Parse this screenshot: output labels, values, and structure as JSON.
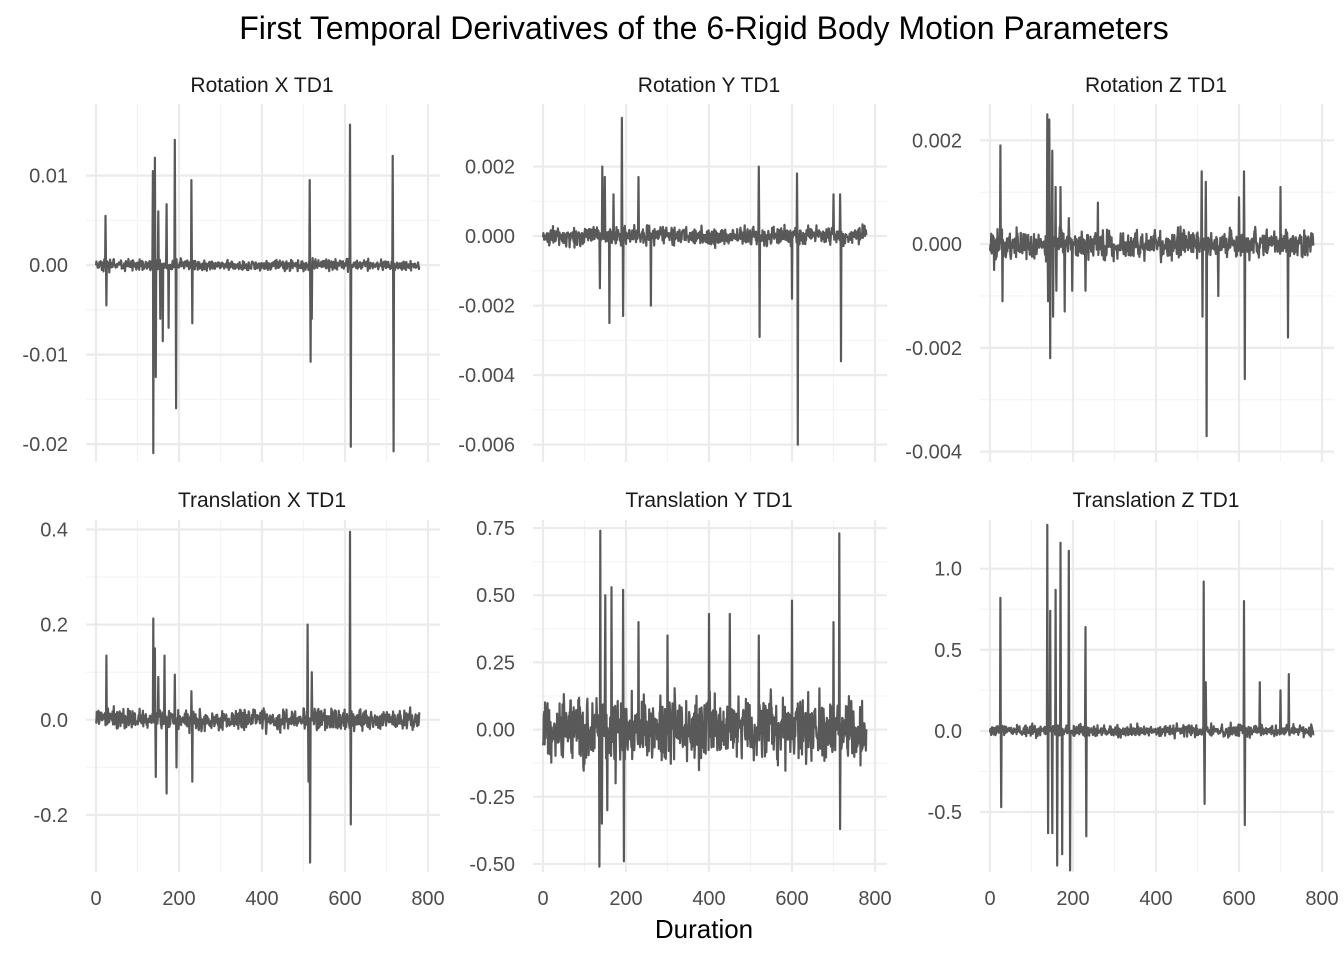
{
  "title": "First Temporal Derivatives of the 6-Rigid Body Motion Parameters",
  "xlabel": "Duration",
  "line_color": "#595959",
  "chart_data": [
    {
      "type": "line",
      "title": "Rotation X TD1",
      "xlim": [
        0,
        800
      ],
      "x_ticks": [
        0,
        200,
        400,
        600,
        800
      ],
      "x_tick_labels": [
        "0",
        "200",
        "400",
        "600",
        "800"
      ],
      "ylim": [
        -0.022,
        0.018
      ],
      "y_ticks": [
        -0.02,
        -0.01,
        0.0,
        0.01
      ],
      "y_tick_labels": [
        "-0.02",
        "-0.01",
        "0.00",
        "0.01"
      ],
      "noise": 0.0005,
      "n": 780,
      "spikes": [
        [
          23,
          0.0055
        ],
        [
          25,
          -0.0045
        ],
        [
          137,
          0.0105
        ],
        [
          138,
          -0.021
        ],
        [
          142,
          0.012
        ],
        [
          144,
          -0.0125
        ],
        [
          150,
          0.006
        ],
        [
          155,
          -0.006
        ],
        [
          161,
          -0.0085
        ],
        [
          170,
          0.0068
        ],
        [
          175,
          -0.007
        ],
        [
          190,
          0.014
        ],
        [
          193,
          -0.016
        ],
        [
          230,
          0.0095
        ],
        [
          232,
          -0.0065
        ],
        [
          515,
          0.0095
        ],
        [
          517,
          -0.0108
        ],
        [
          520,
          -0.006
        ],
        [
          612,
          0.0157
        ],
        [
          614,
          -0.0203
        ],
        [
          715,
          0.0122
        ],
        [
          717,
          -0.0208
        ]
      ]
    },
    {
      "type": "line",
      "title": "Rotation Y TD1",
      "xlim": [
        0,
        800
      ],
      "x_ticks": [
        0,
        200,
        400,
        600,
        800
      ],
      "x_tick_labels": [
        "0",
        "200",
        "400",
        "600",
        "800"
      ],
      "ylim": [
        -0.0065,
        0.0038
      ],
      "y_ticks": [
        -0.006,
        -0.004,
        -0.002,
        0.0,
        0.002
      ],
      "y_tick_labels": [
        "-0.006",
        "-0.004",
        "-0.002",
        "0.000",
        "0.002"
      ],
      "noise": 0.00022,
      "n": 780,
      "spikes": [
        [
          137,
          -0.0015
        ],
        [
          143,
          0.002
        ],
        [
          149,
          0.0017
        ],
        [
          160,
          -0.0025
        ],
        [
          170,
          0.0012
        ],
        [
          190,
          0.0034
        ],
        [
          193,
          -0.0023
        ],
        [
          230,
          0.0017
        ],
        [
          260,
          -0.002
        ],
        [
          520,
          0.002
        ],
        [
          522,
          -0.0029
        ],
        [
          600,
          -0.0018
        ],
        [
          612,
          0.0018
        ],
        [
          614,
          -0.006
        ],
        [
          700,
          0.0012
        ],
        [
          716,
          0.0012
        ],
        [
          718,
          -0.0036
        ]
      ]
    },
    {
      "type": "line",
      "title": "Rotation Z TD1",
      "xlim": [
        0,
        800
      ],
      "x_ticks": [
        0,
        200,
        400,
        600,
        800
      ],
      "x_tick_labels": [
        "0",
        "200",
        "400",
        "600",
        "800"
      ],
      "ylim": [
        -0.0042,
        0.0027
      ],
      "y_ticks": [
        -0.004,
        -0.002,
        0.0,
        0.002
      ],
      "y_tick_labels": [
        "-0.004",
        "-0.002",
        "0.000",
        "0.002"
      ],
      "noise": 0.00022,
      "n": 780,
      "spikes": [
        [
          10,
          -0.0005
        ],
        [
          25,
          0.0019
        ],
        [
          30,
          -0.0011
        ],
        [
          138,
          0.0025
        ],
        [
          140,
          -0.0011
        ],
        [
          143,
          0.0024
        ],
        [
          145,
          -0.0022
        ],
        [
          150,
          0.0018
        ],
        [
          152,
          -0.0014
        ],
        [
          158,
          0.0011
        ],
        [
          160,
          -0.0009
        ],
        [
          170,
          0.0011
        ],
        [
          180,
          -0.0013
        ],
        [
          190,
          0.0005
        ],
        [
          198,
          -0.0009
        ],
        [
          230,
          -0.0009
        ],
        [
          260,
          0.0008
        ],
        [
          510,
          0.0014
        ],
        [
          512,
          -0.0014
        ],
        [
          520,
          0.0012
        ],
        [
          522,
          -0.0037
        ],
        [
          550,
          -0.001
        ],
        [
          600,
          0.0009
        ],
        [
          612,
          0.0014
        ],
        [
          614,
          -0.0026
        ],
        [
          700,
          0.0011
        ],
        [
          718,
          -0.0018
        ]
      ]
    },
    {
      "type": "line",
      "title": "Translation X TD1",
      "xlim": [
        0,
        800
      ],
      "x_ticks": [
        0,
        200,
        400,
        600,
        800
      ],
      "x_tick_labels": [
        "0",
        "200",
        "400",
        "600",
        "800"
      ],
      "ylim": [
        -0.32,
        0.42
      ],
      "y_ticks": [
        -0.2,
        0.0,
        0.2,
        0.4
      ],
      "y_tick_labels": [
        "-0.2",
        "0.0",
        "0.2",
        "0.4"
      ],
      "noise": 0.018,
      "n": 780,
      "spikes": [
        [
          25,
          0.135
        ],
        [
          138,
          0.213
        ],
        [
          142,
          0.15
        ],
        [
          144,
          -0.12
        ],
        [
          150,
          0.09
        ],
        [
          165,
          0.135
        ],
        [
          170,
          -0.155
        ],
        [
          190,
          0.095
        ],
        [
          194,
          -0.1
        ],
        [
          230,
          0.06
        ],
        [
          232,
          -0.13
        ],
        [
          510,
          0.2
        ],
        [
          512,
          -0.13
        ],
        [
          516,
          -0.3
        ],
        [
          520,
          0.1
        ],
        [
          612,
          0.395
        ],
        [
          614,
          -0.22
        ]
      ]
    },
    {
      "type": "line",
      "title": "Translation Y TD1",
      "xlim": [
        0,
        800
      ],
      "x_ticks": [
        0,
        200,
        400,
        600,
        800
      ],
      "x_tick_labels": [
        "0",
        "200",
        "400",
        "600",
        "800"
      ],
      "ylim": [
        -0.53,
        0.78
      ],
      "y_ticks": [
        -0.5,
        -0.25,
        0.0,
        0.25,
        0.5,
        0.75
      ],
      "y_tick_labels": [
        "-0.50",
        "-0.25",
        "0.00",
        "0.25",
        "0.50",
        "0.75"
      ],
      "noise": 0.1,
      "n": 780,
      "spikes": [
        [
          136,
          -0.51
        ],
        [
          138,
          0.74
        ],
        [
          142,
          -0.35
        ],
        [
          150,
          0.5
        ],
        [
          155,
          -0.3
        ],
        [
          165,
          0.53
        ],
        [
          175,
          -0.2
        ],
        [
          193,
          0.52
        ],
        [
          195,
          -0.49
        ],
        [
          230,
          0.4
        ],
        [
          300,
          0.35
        ],
        [
          400,
          0.43
        ],
        [
          450,
          0.43
        ],
        [
          520,
          0.35
        ],
        [
          600,
          0.48
        ],
        [
          700,
          0.4
        ],
        [
          714,
          0.73
        ],
        [
          716,
          -0.37
        ]
      ]
    },
    {
      "type": "line",
      "title": "Translation Z TD1",
      "xlim": [
        0,
        800
      ],
      "x_ticks": [
        0,
        200,
        400,
        600,
        800
      ],
      "x_tick_labels": [
        "0",
        "200",
        "400",
        "600",
        "800"
      ],
      "ylim": [
        -0.87,
        1.3
      ],
      "y_ticks": [
        -0.5,
        0.0,
        0.5,
        1.0
      ],
      "y_tick_labels": [
        "-0.5",
        "0.0",
        "0.5",
        "1.0"
      ],
      "noise": 0.03,
      "n": 780,
      "spikes": [
        [
          25,
          0.82
        ],
        [
          27,
          -0.47
        ],
        [
          138,
          1.27
        ],
        [
          140,
          -0.63
        ],
        [
          145,
          0.74
        ],
        [
          150,
          -0.63
        ],
        [
          158,
          0.87
        ],
        [
          162,
          -0.83
        ],
        [
          170,
          1.16
        ],
        [
          174,
          -0.76
        ],
        [
          190,
          1.11
        ],
        [
          193,
          -0.86
        ],
        [
          230,
          0.64
        ],
        [
          232,
          -0.65
        ],
        [
          515,
          0.92
        ],
        [
          517,
          -0.45
        ],
        [
          520,
          0.3
        ],
        [
          612,
          0.8
        ],
        [
          614,
          -0.58
        ],
        [
          650,
          0.3
        ],
        [
          700,
          0.25
        ],
        [
          720,
          0.35
        ]
      ]
    }
  ]
}
